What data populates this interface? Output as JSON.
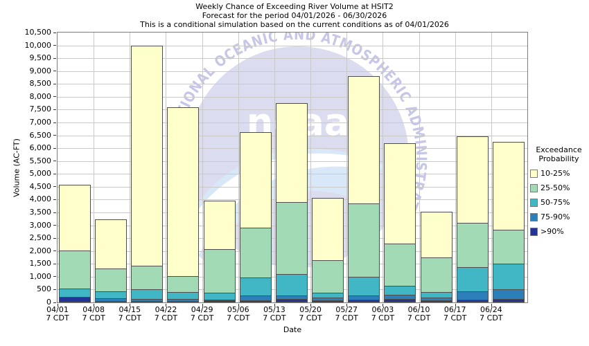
{
  "title": {
    "line1": "Weekly Chance of Exceeding River Volume at HSIT2",
    "line2": "Forecast for the period 04/01/2026 - 06/30/2026",
    "line3": "This is a conditional simulation based on the current conditions as of 04/01/2026"
  },
  "y_axis": {
    "label": "Volume (AC-FT)",
    "min": 0,
    "max": 10500,
    "step": 500,
    "tick_labels": [
      "0",
      "500",
      "1,000",
      "1,500",
      "2,000",
      "2,500",
      "3,000",
      "3,500",
      "4,000",
      "4,500",
      "5,000",
      "5,500",
      "6,000",
      "6,500",
      "7,000",
      "7,500",
      "8,000",
      "8,500",
      "9,000",
      "9,500",
      "10,000",
      "10,500"
    ]
  },
  "x_axis": {
    "label": "Date",
    "tick_second_line": "7 CDT",
    "categories": [
      "04/01",
      "04/08",
      "04/15",
      "04/22",
      "04/29",
      "05/06",
      "05/13",
      "05/20",
      "05/27",
      "06/03",
      "06/10",
      "06/17",
      "06/24"
    ]
  },
  "legend": {
    "title_line1": "Exceedance",
    "title_line2": "Probability",
    "items": [
      {
        "label": "10-25%",
        "color": "#ffffcc"
      },
      {
        "label": "25-50%",
        "color": "#a1dab4"
      },
      {
        "label": "50-75%",
        "color": "#41b6c4"
      },
      {
        "label": "75-90%",
        "color": "#2c7fb8"
      },
      {
        "label": ">90%",
        "color": "#253494"
      }
    ]
  },
  "watermark": {
    "arc_text": "NATIONAL OCEANIC AND ATMOSPHERIC ADMINISTRATION",
    "center_text": "noaa",
    "disc_color": "#dcdcf0",
    "arc_text_color": "#c6c6e6",
    "swoosh_color": "#d9e8f8"
  },
  "chart_data": {
    "type": "bar",
    "stacked": true,
    "title": "Weekly Chance of Exceeding River Volume at HSIT2",
    "xlabel": "Date",
    "ylabel": "Volume (AC-FT)",
    "ylim": [
      0,
      10500
    ],
    "y_step": 500,
    "grid": true,
    "legend_position": "right",
    "categories": [
      "04/01",
      "04/08",
      "04/15",
      "04/22",
      "04/29",
      "05/06",
      "05/13",
      "05/20",
      "05/27",
      "06/03",
      "06/10",
      "06/17",
      "06/24"
    ],
    "series": [
      {
        "name": ">90%",
        "color": "#253494",
        "values": [
          190,
          30,
          35,
          20,
          50,
          60,
          100,
          60,
          80,
          100,
          55,
          80,
          100
        ]
      },
      {
        "name": "75-90%",
        "color": "#2c7fb8",
        "values": [
          0,
          115,
          80,
          80,
          40,
          170,
          135,
          100,
          150,
          180,
          115,
          330,
          385
        ]
      },
      {
        "name": "50-75%",
        "color": "#41b6c4",
        "values": [
          310,
          265,
          375,
          280,
          260,
          700,
          840,
          190,
          750,
          330,
          200,
          930,
          995
        ]
      },
      {
        "name": "25-50%",
        "color": "#a1dab4",
        "values": [
          1500,
          890,
          910,
          630,
          1690,
          1950,
          2790,
          1270,
          2850,
          1660,
          1360,
          1720,
          1330
        ]
      },
      {
        "name": "10-25%",
        "color": "#ffffcc",
        "values": [
          2550,
          1900,
          8570,
          6560,
          1890,
          3720,
          3855,
          2430,
          4960,
          3890,
          1780,
          3370,
          3410
        ]
      }
    ],
    "totals": [
      4550,
      3200,
      9970,
      7570,
      3930,
      6600,
      7720,
      4050,
      8790,
      6160,
      3510,
      6430,
      6220
    ]
  }
}
